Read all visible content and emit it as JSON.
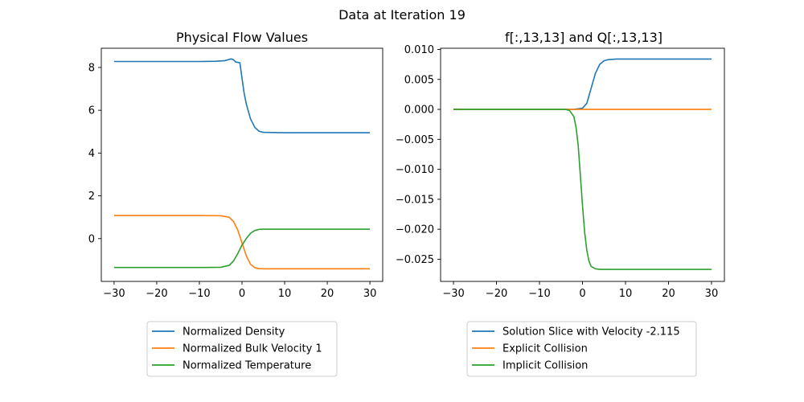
{
  "figure": {
    "suptitle": "Data at Iteration 19"
  },
  "chart_data": [
    {
      "type": "line",
      "title": "Physical Flow Values",
      "xlabel": "",
      "ylabel": "",
      "xlim": [
        -33,
        33
      ],
      "ylim": [
        -2.0,
        8.9
      ],
      "xticks": [
        -30,
        -20,
        -10,
        0,
        10,
        20,
        30
      ],
      "xtick_labels": [
        "−30",
        "−20",
        "−10",
        "0",
        "10",
        "20",
        "30"
      ],
      "yticks": [
        0,
        2,
        4,
        6,
        8
      ],
      "ytick_labels": [
        "0",
        "2",
        "4",
        "6",
        "8"
      ],
      "grid": false,
      "legend_placement": "below",
      "series": [
        {
          "name": "Normalized Density",
          "color": "#1f77b4",
          "x": [
            -30,
            -20,
            -10,
            -6,
            -4,
            -3,
            -2.5,
            -2,
            -1.5,
            -1,
            -0.5,
            0,
            0.5,
            1,
            1.5,
            2,
            3,
            4,
            5,
            7,
            10,
            20,
            30
          ],
          "y": [
            8.28,
            8.28,
            8.28,
            8.29,
            8.32,
            8.38,
            8.4,
            8.36,
            8.26,
            8.24,
            8.22,
            7.5,
            6.8,
            6.3,
            5.95,
            5.6,
            5.2,
            5.02,
            4.97,
            4.96,
            4.95,
            4.95,
            4.95
          ]
        },
        {
          "name": "Normalized Bulk Velocity 1",
          "color": "#ff7f0e",
          "x": [
            -30,
            -20,
            -10,
            -5,
            -3,
            -2,
            -1,
            0,
            1,
            2,
            3,
            4,
            5,
            7,
            10,
            20,
            30
          ],
          "y": [
            1.08,
            1.08,
            1.08,
            1.07,
            1.0,
            0.8,
            0.4,
            -0.2,
            -0.8,
            -1.2,
            -1.36,
            -1.4,
            -1.41,
            -1.41,
            -1.41,
            -1.41,
            -1.41
          ]
        },
        {
          "name": "Normalized Temperature",
          "color": "#2ca02c",
          "x": [
            -30,
            -20,
            -10,
            -5,
            -3,
            -2,
            -1,
            0,
            1,
            2,
            3,
            4,
            5,
            7,
            10,
            20,
            30
          ],
          "y": [
            -1.35,
            -1.35,
            -1.35,
            -1.34,
            -1.25,
            -1.05,
            -0.7,
            -0.3,
            0.0,
            0.25,
            0.38,
            0.43,
            0.44,
            0.44,
            0.44,
            0.44,
            0.44
          ]
        }
      ]
    },
    {
      "type": "line",
      "title": "f[:,13,13] and Q[:,13,13]",
      "xlabel": "",
      "ylabel": "",
      "xlim": [
        -33,
        33
      ],
      "ylim": [
        -0.0287,
        0.0102
      ],
      "xticks": [
        -30,
        -20,
        -10,
        0,
        10,
        20,
        30
      ],
      "xtick_labels": [
        "−30",
        "−20",
        "−10",
        "0",
        "10",
        "20",
        "30"
      ],
      "yticks": [
        0.01,
        0.005,
        0.0,
        -0.005,
        -0.01,
        -0.015,
        -0.02,
        -0.025
      ],
      "ytick_labels": [
        "0.010",
        "0.005",
        "0.000",
        "−0.005",
        "−0.010",
        "−0.015",
        "−0.020",
        "−0.025"
      ],
      "grid": false,
      "legend_placement": "below",
      "series": [
        {
          "name": "Solution Slice with Velocity -2.115",
          "color": "#1f77b4",
          "x": [
            -30,
            -20,
            -10,
            -2,
            0,
            1,
            2,
            3,
            4,
            5,
            6,
            8,
            10,
            20,
            30
          ],
          "y": [
            0.0,
            0.0,
            0.0,
            0.0,
            0.0002,
            0.001,
            0.0035,
            0.006,
            0.0075,
            0.0081,
            0.0083,
            0.0084,
            0.0084,
            0.0084,
            0.0084
          ],
          "note": ""
        },
        {
          "name": "Explicit Collision",
          "color": "#ff7f0e",
          "x": [
            -30,
            -20,
            -10,
            0,
            10,
            20,
            30
          ],
          "y": [
            0.0,
            0.0,
            0.0,
            0.0,
            0.0,
            0.0,
            0.0
          ]
        },
        {
          "name": "Implicit Collision",
          "color": "#2ca02c",
          "x": [
            -30,
            -20,
            -10,
            -4,
            -3,
            -2,
            -1.5,
            -1,
            -0.5,
            0,
            0.5,
            1,
            1.5,
            2,
            3,
            4,
            6,
            10,
            20,
            30
          ],
          "y": [
            0.0,
            0.0,
            0.0,
            0.0,
            -0.0002,
            -0.0012,
            -0.003,
            -0.006,
            -0.011,
            -0.016,
            -0.0205,
            -0.0235,
            -0.0253,
            -0.0262,
            -0.0266,
            -0.0267,
            -0.0267,
            -0.0267,
            -0.0267,
            -0.0267
          ]
        }
      ]
    }
  ]
}
